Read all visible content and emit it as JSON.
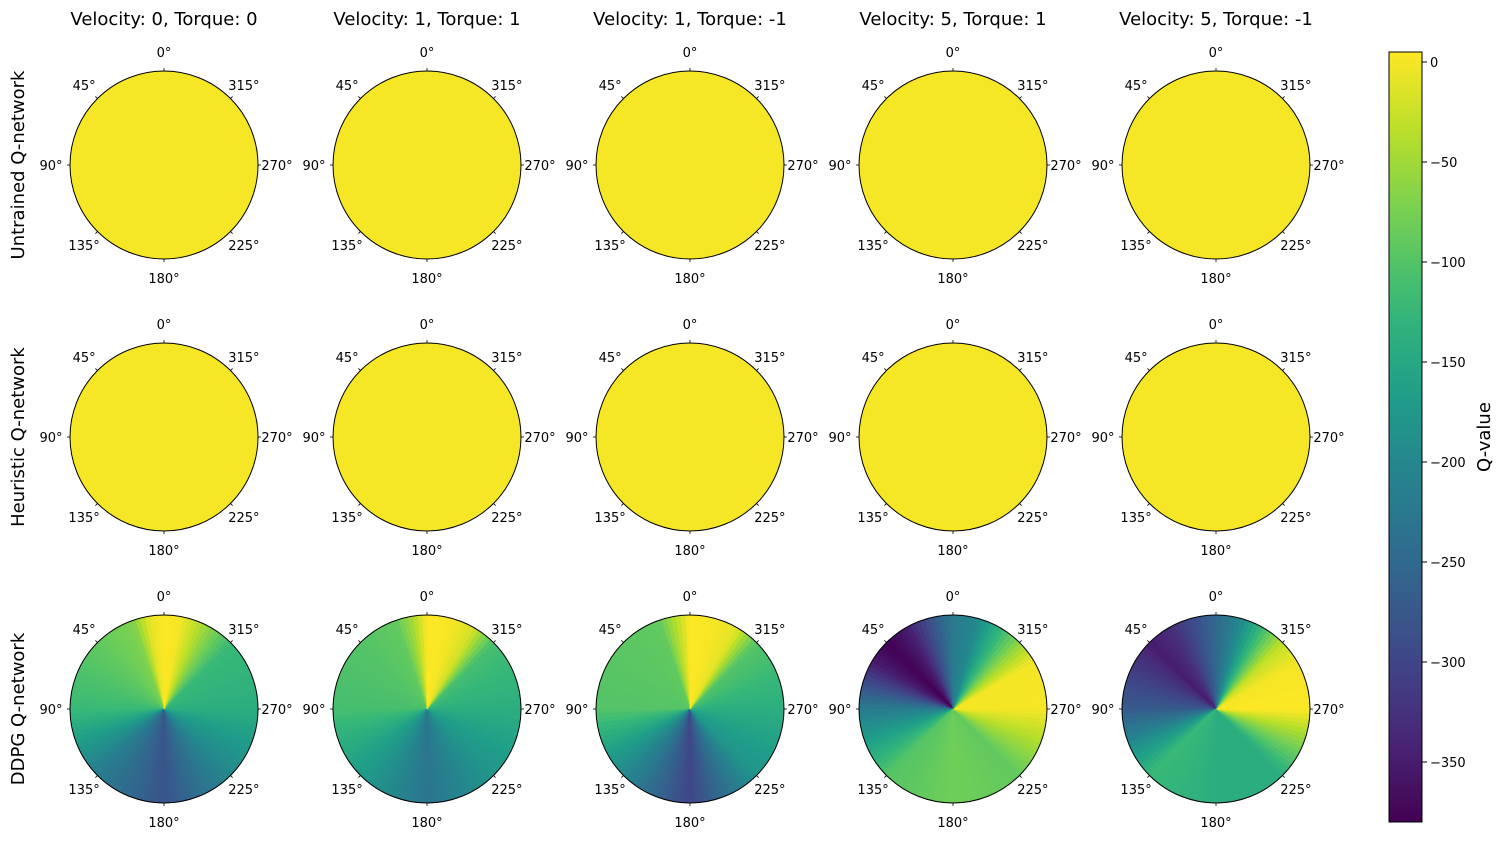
{
  "chart_data": {
    "type": "polar-heatmap",
    "columns": [
      "Velocity: 0, Torque: 0",
      "Velocity: 1, Torque: 1",
      "Velocity: 1, Torque: -1",
      "Velocity: 5, Torque: 1",
      "Velocity: 5, Torque: -1"
    ],
    "rows": [
      "Untrained Q-network",
      "Heuristic Q-network",
      "DDPG Q-network"
    ],
    "angle_ticks": [
      "0°",
      "45°",
      "90°",
      "135°",
      "180°",
      "225°",
      "270°",
      "315°"
    ],
    "angle_direction": "counterclockwise, 0° at top",
    "colorbar": {
      "label": "Q-value",
      "colormap": "viridis",
      "vmin": -380,
      "vmax": 5,
      "ticks": [
        0,
        -50,
        -100,
        -150,
        -200,
        -250,
        -300,
        -350
      ],
      "tick_labels": [
        "0",
        "−50",
        "−100",
        "−150",
        "−200",
        "−250",
        "−300",
        "−350"
      ]
    },
    "panels": [
      [
        {
          "angles": [
            0,
            45,
            90,
            135,
            180,
            225,
            270,
            315
          ],
          "q_values": [
            0,
            0,
            0,
            0,
            0,
            0,
            0,
            0
          ]
        },
        {
          "angles": [
            0,
            45,
            90,
            135,
            180,
            225,
            270,
            315
          ],
          "q_values": [
            0,
            0,
            0,
            0,
            0,
            0,
            0,
            0
          ]
        },
        {
          "angles": [
            0,
            45,
            90,
            135,
            180,
            225,
            270,
            315
          ],
          "q_values": [
            0,
            0,
            0,
            0,
            0,
            0,
            0,
            0
          ]
        },
        {
          "angles": [
            0,
            45,
            90,
            135,
            180,
            225,
            270,
            315
          ],
          "q_values": [
            0,
            0,
            0,
            0,
            0,
            0,
            0,
            0
          ]
        },
        {
          "angles": [
            0,
            45,
            90,
            135,
            180,
            225,
            270,
            315
          ],
          "q_values": [
            0,
            0,
            0,
            0,
            0,
            0,
            0,
            0
          ]
        }
      ],
      [
        {
          "angles": [
            0,
            45,
            90,
            135,
            180,
            225,
            270,
            315
          ],
          "q_values": [
            0,
            0,
            0,
            0,
            0,
            0,
            0,
            0
          ]
        },
        {
          "angles": [
            0,
            45,
            90,
            135,
            180,
            225,
            270,
            315
          ],
          "q_values": [
            0,
            0,
            0,
            0,
            0,
            0,
            0,
            0
          ]
        },
        {
          "angles": [
            0,
            45,
            90,
            135,
            180,
            225,
            270,
            315
          ],
          "q_values": [
            0,
            0,
            0,
            0,
            0,
            0,
            0,
            0
          ]
        },
        {
          "angles": [
            0,
            45,
            90,
            135,
            180,
            225,
            270,
            315
          ],
          "q_values": [
            0,
            0,
            0,
            0,
            0,
            0,
            0,
            0
          ]
        },
        {
          "angles": [
            0,
            45,
            90,
            135,
            180,
            225,
            270,
            315
          ],
          "q_values": [
            0,
            0,
            0,
            0,
            0,
            0,
            0,
            0
          ]
        }
      ],
      [
        {
          "angles": [
            0,
            10,
            20,
            45,
            90,
            135,
            180,
            225,
            270,
            315,
            340,
            350
          ],
          "q_values": [
            5,
            -10,
            -70,
            -90,
            -120,
            -220,
            -280,
            -200,
            -140,
            -120,
            -30,
            0
          ]
        },
        {
          "angles": [
            0,
            10,
            20,
            45,
            90,
            135,
            180,
            225,
            270,
            315,
            330,
            345
          ],
          "q_values": [
            5,
            -50,
            -90,
            -100,
            -110,
            -170,
            -230,
            -180,
            -140,
            -110,
            -20,
            2
          ]
        },
        {
          "angles": [
            0,
            10,
            20,
            45,
            90,
            135,
            180,
            225,
            270,
            315,
            330,
            345
          ],
          "q_values": [
            5,
            -40,
            -90,
            -95,
            -100,
            -200,
            -300,
            -180,
            -140,
            -100,
            -10,
            2
          ]
        },
        {
          "angles": [
            0,
            30,
            45,
            60,
            90,
            135,
            180,
            225,
            270,
            300,
            315,
            345
          ],
          "q_values": [
            -220,
            -350,
            -380,
            -350,
            -220,
            -100,
            -80,
            -90,
            0,
            0,
            -60,
            -200
          ]
        },
        {
          "angles": [
            0,
            30,
            45,
            60,
            90,
            135,
            180,
            225,
            270,
            300,
            315,
            345
          ],
          "q_values": [
            -250,
            -330,
            -350,
            -320,
            -270,
            -120,
            -140,
            -140,
            5,
            0,
            -30,
            -200
          ]
        }
      ]
    ]
  }
}
